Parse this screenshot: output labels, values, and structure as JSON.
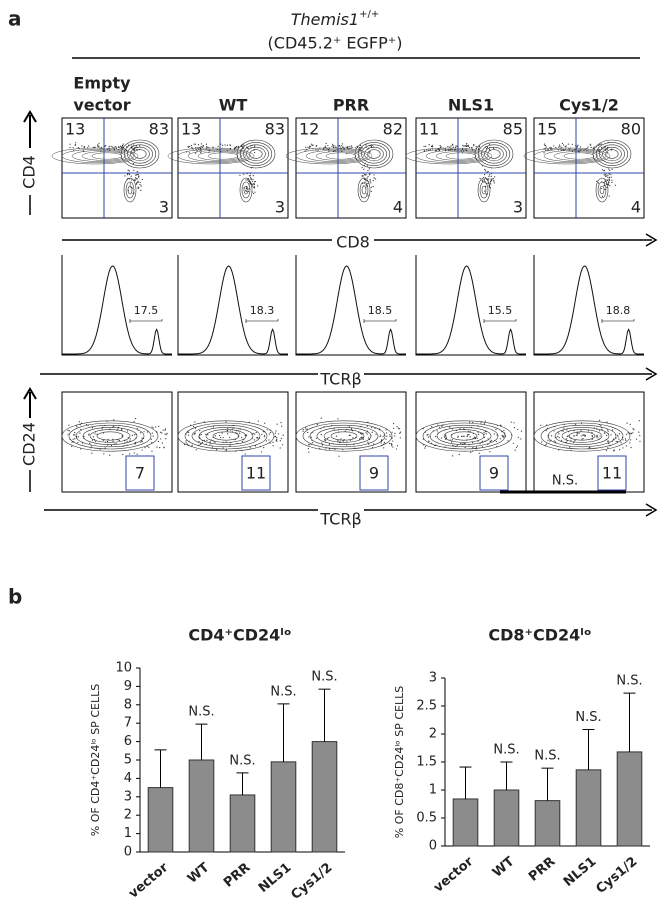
{
  "panel_a": {
    "label": "a",
    "genotype": "Themis1",
    "genotype_sup": "+/+",
    "subtitle": "(CD45.2⁺ EGFP⁺)",
    "column_labels": [
      [
        "Empty",
        "vector"
      ],
      [
        "WT"
      ],
      [
        "PRR"
      ],
      [
        "NLS1"
      ],
      [
        "Cys1/2"
      ]
    ],
    "row1": {
      "y_label": "CD4",
      "x_label": "CD8",
      "quadrants": [
        [
          13,
          83,
          3
        ],
        [
          13,
          83,
          3
        ],
        [
          12,
          82,
          4
        ],
        [
          11,
          85,
          3
        ],
        [
          15,
          80,
          4
        ]
      ]
    },
    "row2": {
      "x_label": "TCRβ",
      "gate_values": [
        17.5,
        18.3,
        18.5,
        15.5,
        18.8
      ]
    },
    "row3": {
      "y_label": "CD24",
      "x_label": "TCRβ",
      "gate_values": [
        7,
        11,
        9,
        9,
        11
      ],
      "annotation": "N.S."
    }
  },
  "panel_b": {
    "label": "b"
  },
  "chart_data": [
    {
      "type": "bar",
      "title": "CD4⁺CD24ˡᵒ",
      "y_label": "% OF CD4⁺CD24ˡᵒ SP CELLS",
      "categories": [
        "vector",
        "WT",
        "PRR",
        "NLS1",
        "Cys1/2"
      ],
      "values": [
        3.5,
        5.0,
        3.1,
        4.9,
        6.0
      ],
      "errors": [
        2.05,
        1.95,
        1.2,
        3.15,
        2.85
      ],
      "annotations": [
        null,
        "N.S.",
        "N.S.",
        "N.S.",
        "N.S."
      ],
      "color": "#8c8c8c",
      "ylim": [
        0,
        10
      ],
      "yticks": [
        0,
        1,
        2,
        3,
        4,
        5,
        6,
        7,
        8,
        9,
        10
      ]
    },
    {
      "type": "bar",
      "title": "CD8⁺CD24ˡᵒ",
      "y_label": "% OF CD8⁺CD24ˡᵒ SP CELLS",
      "categories": [
        "vector",
        "WT",
        "PRR",
        "NLS1",
        "Cys1/2"
      ],
      "values": [
        0.84,
        1.0,
        0.81,
        1.36,
        1.68
      ],
      "errors": [
        0.57,
        0.5,
        0.58,
        0.72,
        1.05
      ],
      "annotations": [
        null,
        "N.S.",
        "N.S.",
        "N.S.",
        "N.S."
      ],
      "color": "#8c8c8c",
      "ylim": [
        0,
        3
      ],
      "yticks": [
        0,
        0.5,
        1,
        1.5,
        2,
        2.5,
        3
      ]
    }
  ]
}
